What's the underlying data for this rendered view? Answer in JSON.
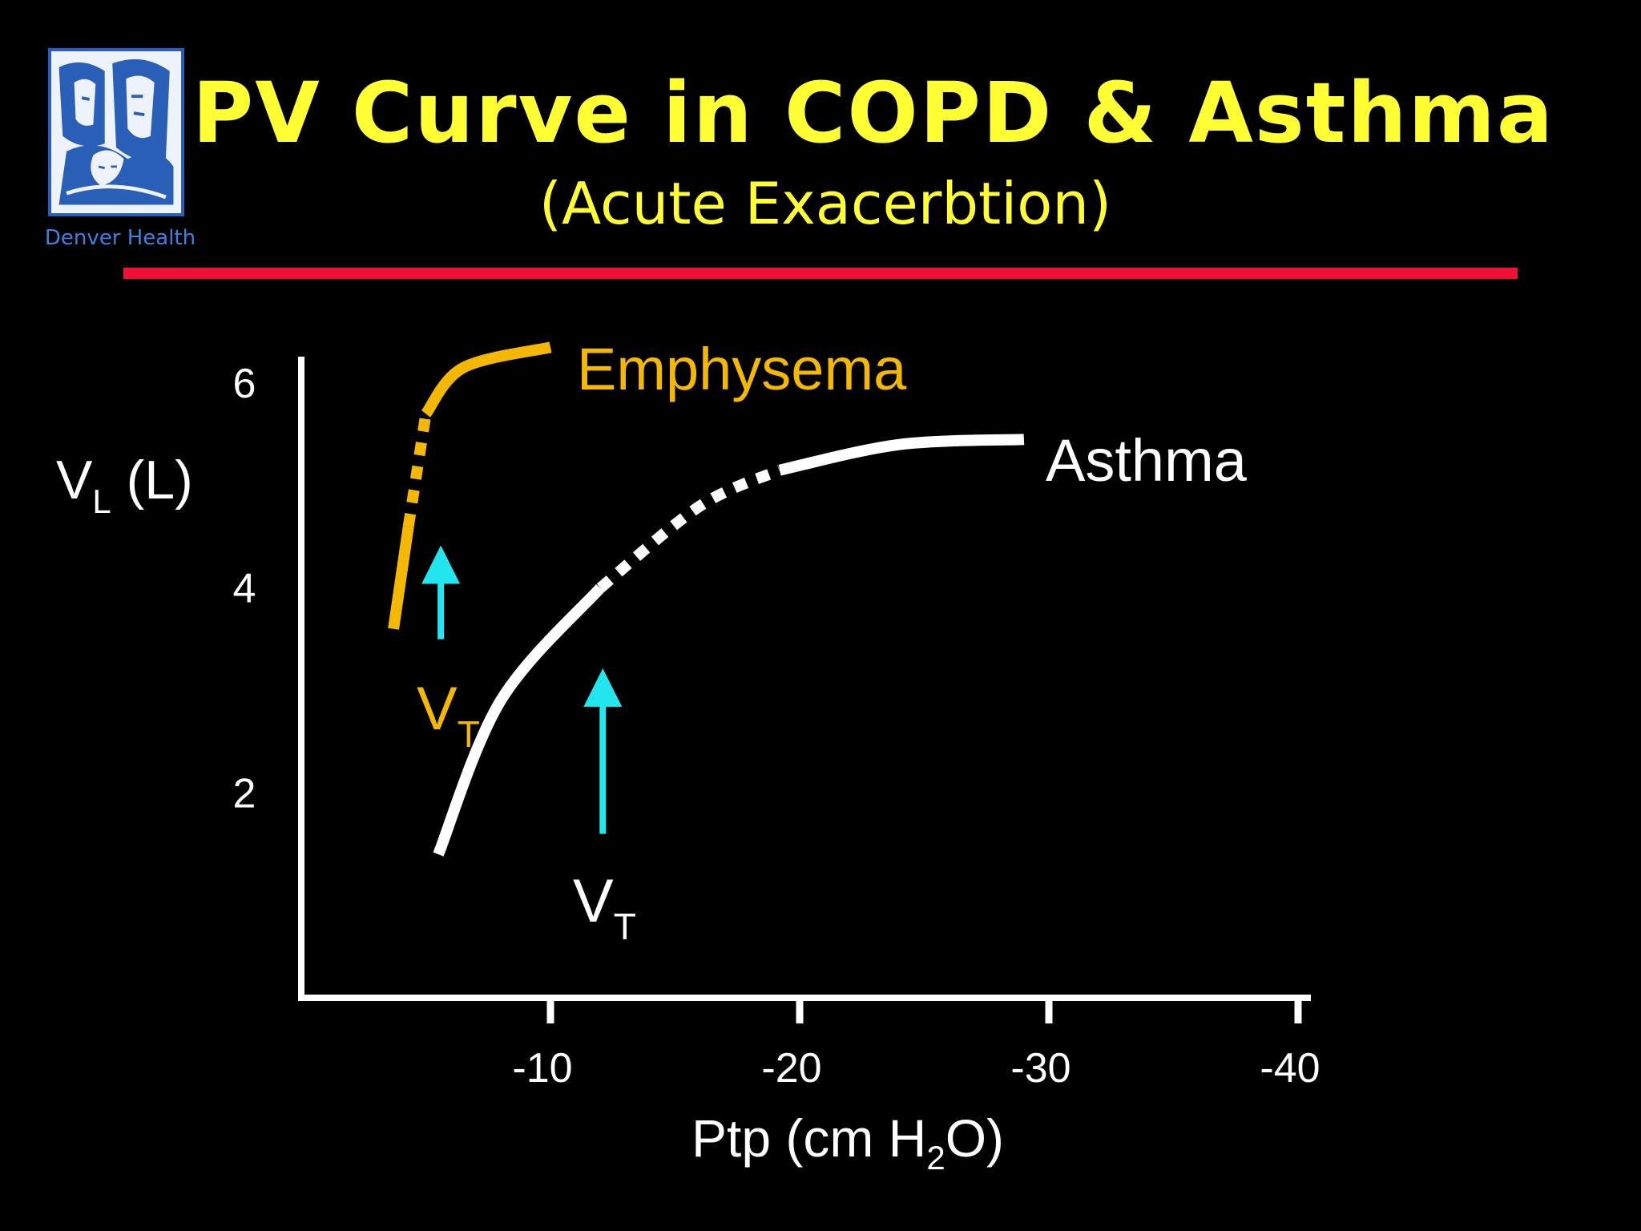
{
  "slide": {
    "title": "PV Curve in COPD & Asthma",
    "subtitle": "(Acute Exacerbtion)",
    "logo_text": "Denver Health",
    "rule_color": "#ee1133",
    "title_color": "#ffff33"
  },
  "chart_data": {
    "type": "line",
    "title": "",
    "ylabel": "V",
    "ylabel_subscript": "L",
    "ylabel_unit": "(L)",
    "xlabel_prefix": "Ptp (cm H",
    "xlabel_subscript": "2",
    "xlabel_suffix": "O)",
    "x_reversed": true,
    "xlim": [
      0,
      -40
    ],
    "ylim": [
      0,
      6.5
    ],
    "xticks": [
      {
        "value": -10,
        "label": "-10"
      },
      {
        "value": -20,
        "label": "-20"
      },
      {
        "value": -30,
        "label": "-30"
      },
      {
        "value": -40,
        "label": "-40"
      }
    ],
    "yticks": [
      {
        "value": 2,
        "label": "2"
      },
      {
        "value": 4,
        "label": "4"
      },
      {
        "value": 6,
        "label": "6"
      }
    ],
    "grid": false,
    "series": [
      {
        "name": "Emphysema",
        "color": "#f5b800",
        "solid_low": [
          [
            -3.7,
            3.6
          ],
          [
            -4.3,
            4.6
          ]
        ],
        "dotted": [
          [
            -4.3,
            4.6
          ],
          [
            -5.0,
            5.7
          ]
        ],
        "solid_high": [
          [
            -5.0,
            5.7
          ],
          [
            -6.5,
            6.15
          ],
          [
            -10.0,
            6.35
          ]
        ],
        "tidal_volume": {
          "label": "V",
          "subscript": "T",
          "x": -5.6,
          "y_from": 3.5,
          "y_to": 4.4
        }
      },
      {
        "name": "Asthma",
        "color": "#ffffff",
        "solid_low": [
          [
            -5.5,
            1.4
          ],
          [
            -8.0,
            2.9
          ],
          [
            -12.0,
            4.0
          ]
        ],
        "dotted": [
          [
            -12.0,
            4.0
          ],
          [
            -16.0,
            4.8
          ],
          [
            -19.2,
            5.15
          ]
        ],
        "solid_high": [
          [
            -19.2,
            5.15
          ],
          [
            -24.0,
            5.4
          ],
          [
            -29.0,
            5.45
          ]
        ],
        "tidal_volume": {
          "label": "V",
          "subscript": "T",
          "x": -12.1,
          "y_from": 1.6,
          "y_to": 3.2
        }
      }
    ]
  }
}
